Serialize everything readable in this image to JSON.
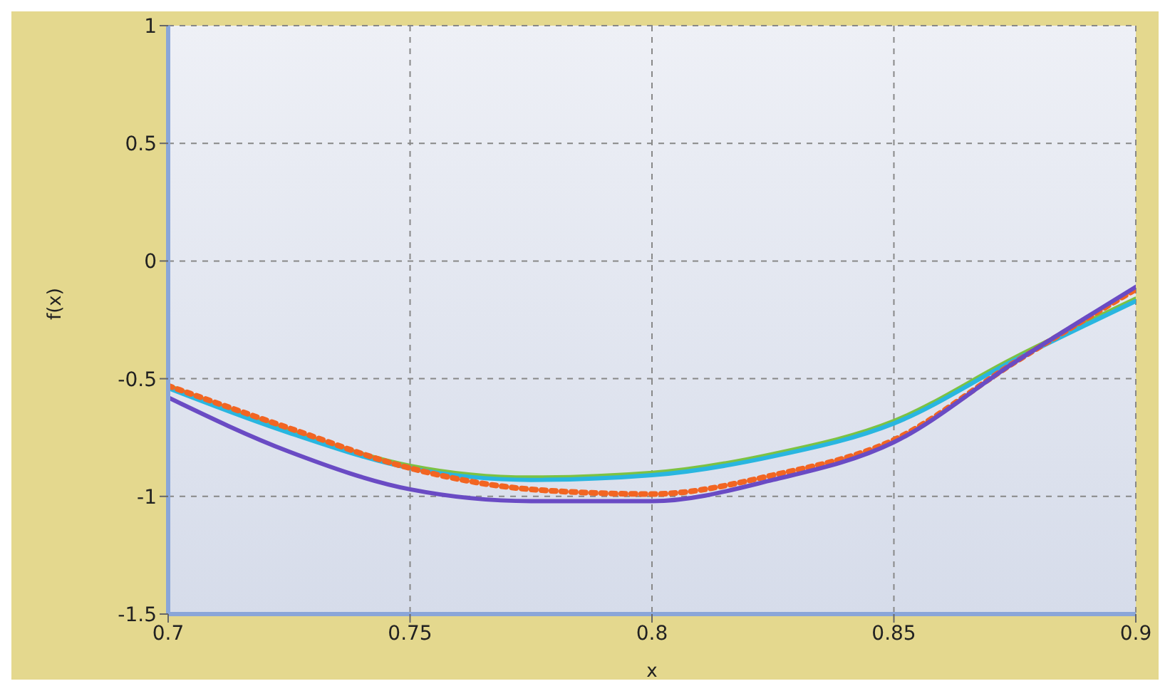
{
  "chart_data": {
    "type": "line",
    "xlabel": "x",
    "ylabel": "f(x)",
    "x": [
      0.7,
      0.725,
      0.75,
      0.775,
      0.8,
      0.825,
      0.85,
      0.875,
      0.9
    ],
    "series": [
      {
        "color": "#7dc242",
        "line_style": "solid",
        "values": [
          -0.53,
          -0.72,
          -0.87,
          -0.92,
          -0.9,
          -0.82,
          -0.68,
          -0.41,
          -0.16
        ]
      },
      {
        "color": "#29b6e0",
        "line_style": "solid",
        "values": [
          -0.54,
          -0.73,
          -0.88,
          -0.93,
          -0.91,
          -0.83,
          -0.69,
          -0.42,
          -0.17
        ]
      },
      {
        "color": "#f26522",
        "line_style": "dotted",
        "values": [
          -0.53,
          -0.71,
          -0.88,
          -0.97,
          -0.99,
          -0.91,
          -0.76,
          -0.43,
          -0.12
        ]
      },
      {
        "color": "#6a4bc4",
        "line_style": "solid",
        "values": [
          -0.58,
          -0.81,
          -0.97,
          -1.02,
          -1.02,
          -0.93,
          -0.77,
          -0.43,
          -0.11
        ]
      }
    ],
    "xlim": [
      0.7,
      0.9
    ],
    "xticks": [
      0.7,
      0.75,
      0.8,
      0.85,
      0.9
    ],
    "ylim": [
      -1.5,
      1
    ],
    "yticks": [
      -1.5,
      -1,
      -0.5,
      0,
      0.5,
      1
    ],
    "grid": true,
    "legend": false,
    "marker": "none"
  }
}
